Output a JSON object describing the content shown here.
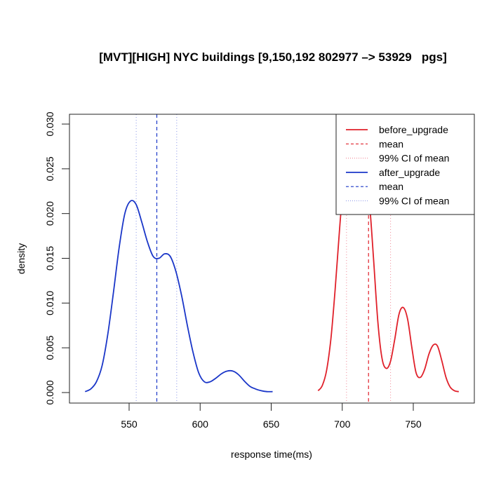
{
  "chart_data": {
    "type": "line",
    "title": "[MVT][HIGH] NYC buildings [9,150,192 802977 -> 53929   pgs]",
    "xlabel": "response time(ms)",
    "ylabel": "density",
    "xlim": [
      510,
      790
    ],
    "ylim": [
      -0.0012,
      0.0311
    ],
    "x_ticks": [
      550,
      600,
      650,
      700,
      750
    ],
    "y_ticks": [
      0.0,
      0.005,
      0.01,
      0.015,
      0.02,
      0.025,
      0.03
    ],
    "y_tick_labels": [
      "0.000",
      "0.005",
      "0.010",
      "0.015",
      "0.020",
      "0.025",
      "0.030"
    ],
    "grid": false,
    "legend_position": "topright",
    "legend": [
      {
        "label": "before_upgrade",
        "color": "#e0202a",
        "style": "solid"
      },
      {
        "label": "mean",
        "color": "#e0202a",
        "style": "dashed"
      },
      {
        "label": "99% CI  of mean",
        "color": "#f08a98",
        "style": "dotted"
      },
      {
        "label": "after_upgrade",
        "color": "#1a36c8",
        "style": "solid"
      },
      {
        "label": "mean",
        "color": "#1a36c8",
        "style": "dashed"
      },
      {
        "label": "99% CI  of mean",
        "color": "#8a96e8",
        "style": "dotted"
      }
    ],
    "series": [
      {
        "name": "before_upgrade",
        "color": "#e0202a",
        "x": [
          683,
          686,
          689,
          692,
          695,
          698,
          701,
          704,
          707,
          710,
          713,
          716,
          719,
          722,
          725,
          728,
          731,
          734,
          737,
          740,
          743,
          746,
          749,
          752,
          755,
          758,
          761,
          764,
          767,
          770,
          773,
          776,
          779,
          782
        ],
        "y": [
          0.0002,
          0.0008,
          0.0025,
          0.006,
          0.0115,
          0.018,
          0.024,
          0.0285,
          0.0305,
          0.03,
          0.028,
          0.025,
          0.0215,
          0.015,
          0.008,
          0.0038,
          0.0027,
          0.0035,
          0.006,
          0.0088,
          0.0095,
          0.0082,
          0.005,
          0.0022,
          0.0017,
          0.0026,
          0.0043,
          0.0053,
          0.0052,
          0.0036,
          0.0017,
          0.0006,
          0.0002,
          0.0001
        ],
        "mean": 718.5,
        "ci99": [
          703,
          734
        ]
      },
      {
        "name": "after_upgrade",
        "color": "#1a36c8",
        "x": [
          519,
          523,
          527,
          531,
          535,
          539,
          543,
          547,
          551,
          555,
          559,
          563,
          567,
          571,
          575,
          579,
          583,
          587,
          591,
          595,
          599,
          603,
          607,
          611,
          615,
          619,
          623,
          627,
          631,
          635,
          639,
          643,
          647,
          651
        ],
        "y": [
          0.0001,
          0.0004,
          0.0012,
          0.003,
          0.0065,
          0.0112,
          0.0162,
          0.02,
          0.0214,
          0.021,
          0.019,
          0.0168,
          0.0152,
          0.015,
          0.0155,
          0.0152,
          0.0135,
          0.0108,
          0.0075,
          0.0045,
          0.0022,
          0.0012,
          0.0012,
          0.0016,
          0.0021,
          0.0024,
          0.0024,
          0.002,
          0.0013,
          0.0007,
          0.0004,
          0.0002,
          0.0001,
          0.0001
        ],
        "mean": 569.5,
        "ci99": [
          555,
          583.5
        ]
      }
    ]
  },
  "chart": {
    "title": "[MVT][HIGH] NYC buildings [9,150,192 802977 –> 53929   pgs]",
    "xlabel": "response time(ms)",
    "ylabel": "density",
    "x_tick_labels": [
      "550",
      "600",
      "650",
      "700",
      "750"
    ],
    "y_tick_labels": [
      "0.000",
      "0.005",
      "0.010",
      "0.015",
      "0.020",
      "0.025",
      "0.030"
    ],
    "legend_labels": [
      "before_upgrade",
      "mean",
      "99% CI  of mean",
      "after_upgrade",
      "mean",
      "99% CI  of mean"
    ]
  }
}
